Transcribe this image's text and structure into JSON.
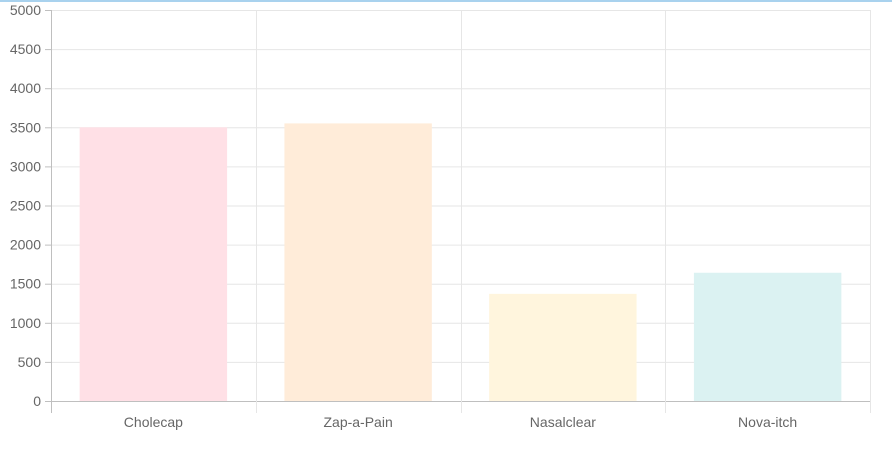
{
  "page": {
    "accent_border_color": "#a9d2ee"
  },
  "chart_data": {
    "type": "bar",
    "title": "",
    "xlabel": "",
    "ylabel": "",
    "categories": [
      "Cholecap",
      "Zap-a-Pain",
      "Nasalclear",
      "Nova-itch"
    ],
    "values": [
      3500,
      3550,
      1370,
      1640
    ],
    "ylim": [
      0,
      5000
    ],
    "ytick_step": 500,
    "grid": true,
    "legend": "none",
    "bar_fill_colors": [
      "#ffe0e6",
      "#ffecd9",
      "#fff5dd",
      "#dbf2f2"
    ],
    "grid_color": "#e6e6e6",
    "axis_color": "#bfbfbf",
    "text_color": "#666666"
  }
}
